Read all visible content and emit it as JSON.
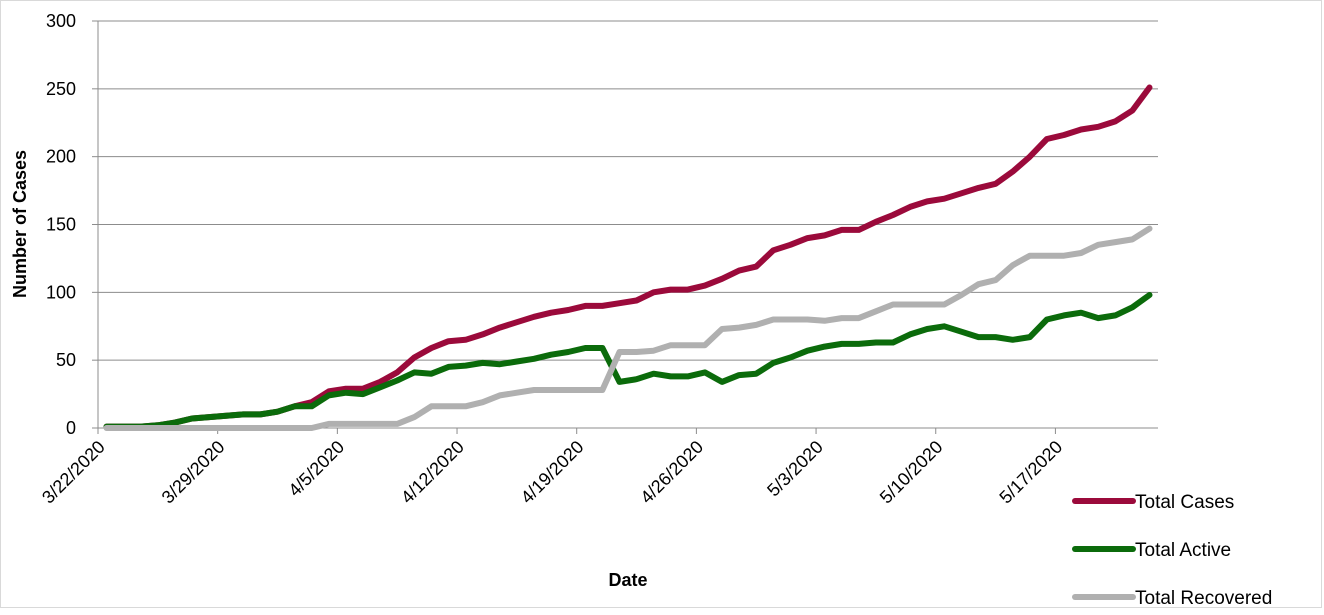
{
  "chart_data": {
    "type": "line",
    "title": "",
    "xlabel": "Date",
    "ylabel": "Number of Cases",
    "ylim": [
      0,
      300
    ],
    "yticks": [
      "0",
      "50",
      "100",
      "150",
      "200",
      "250",
      "300"
    ],
    "x_start": "3/22/2020",
    "x_end": "5/22/2020",
    "xticks": [
      "3/22/2020",
      "3/29/2020",
      "4/5/2020",
      "4/12/2020",
      "4/19/2020",
      "4/26/2020",
      "5/3/2020",
      "5/10/2020",
      "5/17/2020"
    ],
    "dates": [
      "3/22/2020",
      "3/23/2020",
      "3/24/2020",
      "3/25/2020",
      "3/26/2020",
      "3/27/2020",
      "3/28/2020",
      "3/29/2020",
      "3/30/2020",
      "3/31/2020",
      "4/1/2020",
      "4/2/2020",
      "4/3/2020",
      "4/4/2020",
      "4/5/2020",
      "4/6/2020",
      "4/7/2020",
      "4/8/2020",
      "4/9/2020",
      "4/10/2020",
      "4/11/2020",
      "4/12/2020",
      "4/13/2020",
      "4/14/2020",
      "4/15/2020",
      "4/16/2020",
      "4/17/2020",
      "4/18/2020",
      "4/19/2020",
      "4/20/2020",
      "4/21/2020",
      "4/22/2020",
      "4/23/2020",
      "4/24/2020",
      "4/25/2020",
      "4/26/2020",
      "4/27/2020",
      "4/28/2020",
      "4/29/2020",
      "4/30/2020",
      "5/1/2020",
      "5/2/2020",
      "5/3/2020",
      "5/4/2020",
      "5/5/2020",
      "5/6/2020",
      "5/7/2020",
      "5/8/2020",
      "5/9/2020",
      "5/10/2020",
      "5/11/2020",
      "5/12/2020",
      "5/13/2020",
      "5/14/2020",
      "5/15/2020",
      "5/16/2020",
      "5/17/2020",
      "5/18/2020",
      "5/19/2020",
      "5/20/2020",
      "5/21/2020",
      "5/22/2020"
    ],
    "grid": true,
    "legend_position": "bottom-right",
    "series": [
      {
        "name": "Total Cases",
        "color": "#9b0a3b",
        "values": [
          1,
          1,
          1,
          2,
          4,
          7,
          8,
          9,
          10,
          10,
          12,
          16,
          19,
          27,
          29,
          29,
          34,
          41,
          52,
          59,
          64,
          65,
          69,
          74,
          78,
          82,
          85,
          87,
          90,
          90,
          92,
          94,
          100,
          102,
          102,
          105,
          110,
          116,
          119,
          131,
          135,
          140,
          142,
          146,
          146,
          152,
          157,
          163,
          167,
          169,
          173,
          177,
          180,
          189,
          200,
          213,
          216,
          220,
          222,
          226,
          234,
          251
        ]
      },
      {
        "name": "Total Active",
        "color": "#0b6b0b",
        "values": [
          1,
          1,
          1,
          2,
          4,
          7,
          8,
          9,
          10,
          10,
          12,
          16,
          16,
          24,
          26,
          25,
          30,
          35,
          41,
          40,
          45,
          46,
          48,
          47,
          49,
          51,
          54,
          56,
          59,
          59,
          34,
          36,
          40,
          38,
          38,
          41,
          34,
          39,
          40,
          48,
          52,
          57,
          60,
          62,
          62,
          63,
          63,
          69,
          73,
          75,
          71,
          67,
          67,
          65,
          67,
          80,
          83,
          85,
          81,
          83,
          89,
          98
        ]
      },
      {
        "name": "Total Recovered",
        "color": "#b0b0b0",
        "values": [
          0,
          0,
          0,
          0,
          0,
          0,
          0,
          0,
          0,
          0,
          0,
          0,
          0,
          3,
          3,
          3,
          3,
          3,
          8,
          16,
          16,
          16,
          19,
          24,
          26,
          28,
          28,
          28,
          28,
          28,
          56,
          56,
          57,
          61,
          61,
          61,
          73,
          74,
          76,
          80,
          80,
          80,
          79,
          81,
          81,
          86,
          91,
          91,
          91,
          91,
          98,
          106,
          109,
          120,
          127,
          127,
          127,
          129,
          135,
          137,
          139,
          147
        ]
      }
    ]
  }
}
